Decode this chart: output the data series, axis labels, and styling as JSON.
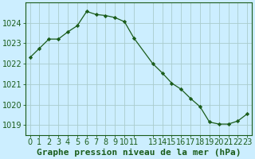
{
  "x": [
    0,
    1,
    2,
    3,
    4,
    5,
    6,
    7,
    8,
    9,
    10,
    11,
    13,
    14,
    15,
    16,
    17,
    18,
    19,
    20,
    21,
    22,
    23
  ],
  "y": [
    1022.3,
    1022.75,
    1023.2,
    1023.2,
    1023.55,
    1023.85,
    1024.55,
    1024.4,
    1024.35,
    1024.25,
    1024.05,
    1023.25,
    1022.0,
    1021.55,
    1021.05,
    1020.75,
    1020.3,
    1019.9,
    1019.15,
    1019.05,
    1019.05,
    1019.2,
    1019.55
  ],
  "background_color": "#cceeff",
  "grid_color": "#aacccc",
  "line_color": "#1a5c1a",
  "marker_color": "#1a5c1a",
  "text_color": "#1a5c1a",
  "ylim": [
    1018.5,
    1025.0
  ],
  "xlim": [
    -0.5,
    23.5
  ],
  "yticks": [
    1019,
    1020,
    1021,
    1022,
    1023,
    1024
  ],
  "xlabel": "Graphe pression niveau de la mer (hPa)",
  "tick_fontsize": 7,
  "xlabel_fontsize": 8
}
